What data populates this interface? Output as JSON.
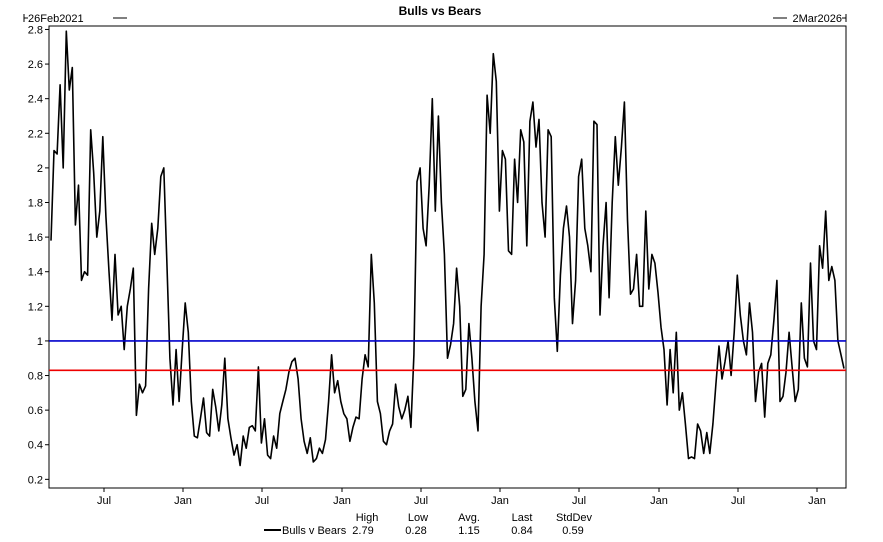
{
  "chart_data": {
    "type": "line",
    "title": "Bulls vs Bears",
    "date_start": "26Feb2021",
    "date_end": "2Mar2026",
    "x_ticks": [
      "Jul",
      "Jan",
      "Jul",
      "Jan",
      "Jul",
      "Jan",
      "Jul",
      "Jan",
      "Jul",
      "Jan"
    ],
    "y_ticks": [
      "0.2",
      "0.4",
      "0.6",
      "0.8",
      "1",
      "1.2",
      "1.4",
      "1.6",
      "1.8",
      "2",
      "2.2",
      "2.4",
      "2.6",
      "2.8"
    ],
    "ylim": [
      0.15,
      2.82
    ],
    "grid": false,
    "reference_lines": [
      {
        "value": 1.0,
        "color": "#0000cc"
      },
      {
        "value": 0.83,
        "color": "#ee0000"
      }
    ],
    "series": [
      {
        "name": "Bulls v Bears",
        "color": "#000000",
        "values": [
          1.58,
          2.1,
          2.08,
          2.48,
          2.0,
          2.79,
          2.45,
          2.58,
          1.67,
          1.9,
          1.35,
          1.4,
          1.38,
          2.22,
          1.97,
          1.6,
          1.75,
          2.18,
          1.72,
          1.4,
          1.12,
          1.5,
          1.15,
          1.2,
          0.95,
          1.2,
          1.3,
          1.42,
          0.57,
          0.75,
          0.7,
          0.74,
          1.3,
          1.68,
          1.5,
          1.65,
          1.95,
          2.0,
          1.45,
          0.9,
          0.63,
          0.95,
          0.65,
          0.95,
          1.22,
          1.05,
          0.65,
          0.45,
          0.44,
          0.55,
          0.67,
          0.47,
          0.45,
          0.72,
          0.62,
          0.48,
          0.63,
          0.9,
          0.55,
          0.44,
          0.34,
          0.4,
          0.28,
          0.45,
          0.38,
          0.5,
          0.51,
          0.48,
          0.85,
          0.41,
          0.55,
          0.34,
          0.32,
          0.45,
          0.38,
          0.58,
          0.65,
          0.72,
          0.82,
          0.88,
          0.9,
          0.78,
          0.55,
          0.42,
          0.35,
          0.44,
          0.3,
          0.32,
          0.38,
          0.35,
          0.43,
          0.65,
          0.92,
          0.7,
          0.77,
          0.65,
          0.58,
          0.55,
          0.42,
          0.5,
          0.56,
          0.55,
          0.78,
          0.92,
          0.85,
          1.5,
          1.22,
          0.65,
          0.58,
          0.42,
          0.4,
          0.48,
          0.52,
          0.75,
          0.62,
          0.55,
          0.6,
          0.68,
          0.5,
          0.92,
          1.92,
          2.0,
          1.65,
          1.55,
          1.9,
          2.4,
          1.75,
          2.3,
          1.8,
          1.5,
          0.9,
          0.98,
          1.1,
          1.42,
          1.2,
          0.68,
          0.72,
          1.1,
          0.9,
          0.65,
          0.48,
          1.2,
          1.5,
          2.42,
          2.2,
          2.66,
          2.5,
          1.75,
          2.1,
          2.05,
          1.52,
          1.5,
          2.05,
          1.8,
          2.22,
          2.15,
          1.55,
          2.27,
          2.38,
          2.12,
          2.28,
          1.8,
          1.6,
          2.22,
          2.18,
          1.25,
          0.94,
          1.38,
          1.65,
          1.78,
          1.6,
          1.1,
          1.35,
          1.95,
          2.05,
          1.65,
          1.55,
          1.4,
          2.27,
          2.25,
          1.15,
          1.55,
          1.8,
          1.25,
          1.8,
          2.18,
          1.9,
          2.12,
          2.38,
          1.7,
          1.27,
          1.3,
          1.5,
          1.2,
          1.2,
          1.75,
          1.3,
          1.5,
          1.45,
          1.28,
          1.08,
          0.95,
          0.63,
          0.95,
          0.7,
          1.05,
          0.6,
          0.7,
          0.52,
          0.32,
          0.33,
          0.32,
          0.52,
          0.48,
          0.35,
          0.47,
          0.35,
          0.52,
          0.75,
          0.97,
          0.78,
          0.88,
          1.0,
          0.8,
          1.05,
          1.38,
          1.15,
          1.0,
          0.92,
          1.22,
          1.05,
          0.65,
          0.82,
          0.87,
          0.56,
          0.87,
          0.92,
          1.12,
          1.35,
          0.65,
          0.68,
          0.82,
          1.05,
          0.85,
          0.65,
          0.72,
          1.22,
          0.9,
          0.85,
          1.45,
          1.0,
          0.95,
          1.55,
          1.42,
          1.75,
          1.35,
          1.43,
          1.35,
          1.0,
          0.92,
          0.84
        ]
      }
    ],
    "stats": {
      "headers": [
        "High",
        "Low",
        "Avg.",
        "Last",
        "StdDev"
      ],
      "values": [
        "2.79",
        "0.28",
        "1.15",
        "0.84",
        "0.59"
      ]
    }
  }
}
